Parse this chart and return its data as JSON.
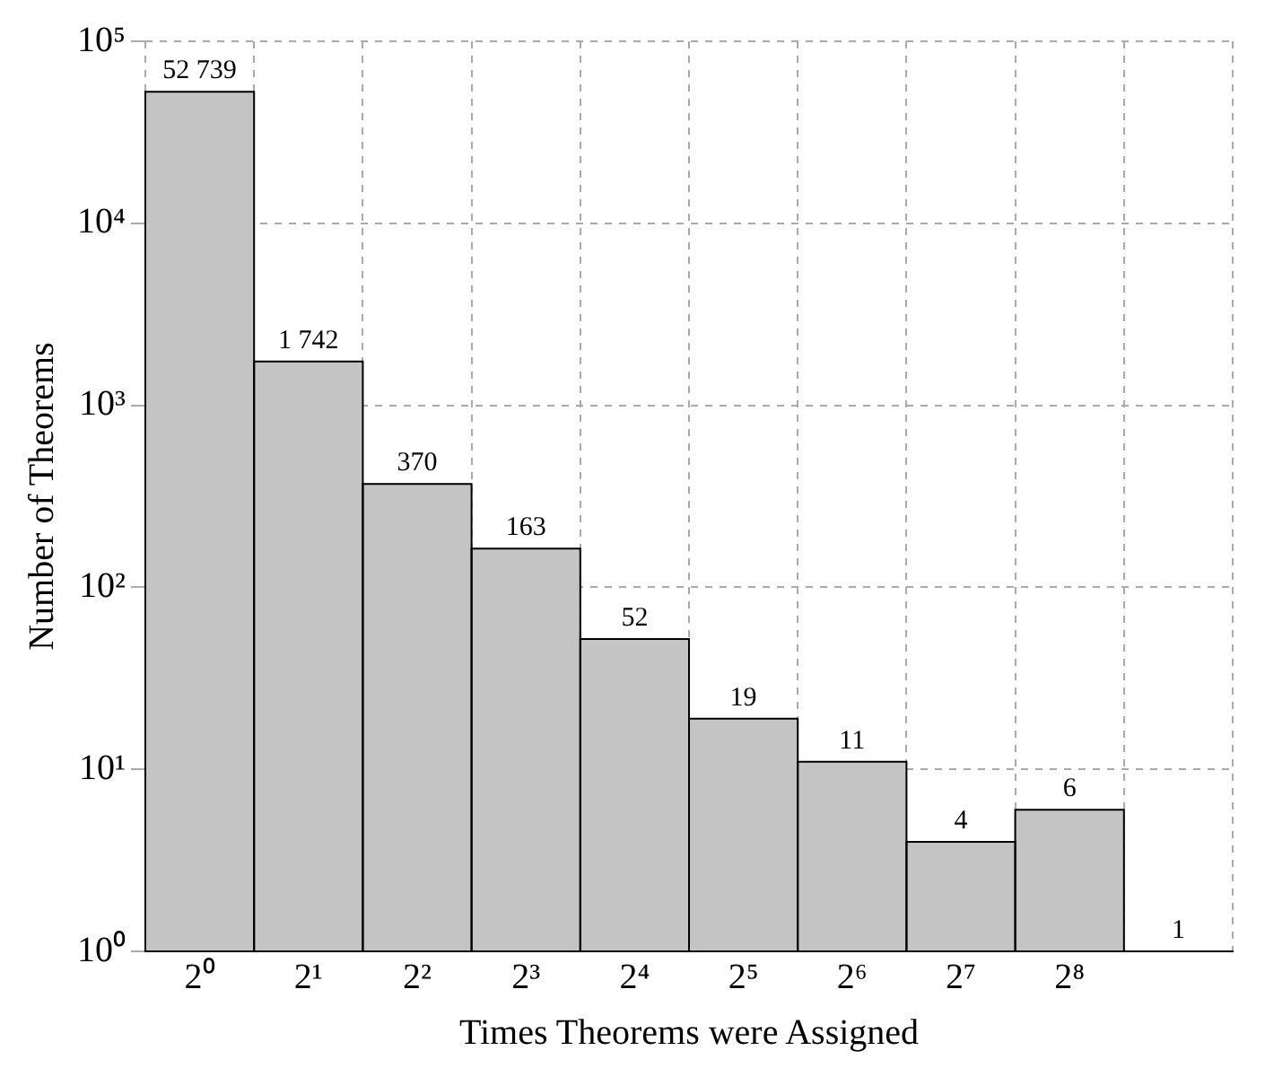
{
  "chart_data": {
    "type": "bar",
    "xlabel": "Times Theorems were Assigned",
    "ylabel": "Number of Theorems",
    "categories": [
      "2⁰",
      "2¹",
      "2²",
      "2³",
      "2⁴",
      "2⁵",
      "2⁶",
      "2⁷",
      "2⁸",
      null
    ],
    "values": [
      52739,
      1742,
      370,
      163,
      52,
      19,
      11,
      4,
      6,
      1
    ],
    "value_labels": [
      "52 739",
      "1 742",
      "370",
      "163",
      "52",
      "19",
      "11",
      "4",
      "6",
      "1"
    ],
    "color": "#c4c4c4",
    "log": true,
    "ylim": [
      1,
      100000
    ],
    "yticks": [
      {
        "value": 1,
        "label": "10⁰"
      },
      {
        "value": 10,
        "label": "10¹"
      },
      {
        "value": 100,
        "label": "10²"
      },
      {
        "value": 1000,
        "label": "10³"
      },
      {
        "value": 10000,
        "label": "10⁴"
      },
      {
        "value": 100000,
        "label": "10⁵"
      }
    ],
    "grid": true,
    "legend": false
  }
}
